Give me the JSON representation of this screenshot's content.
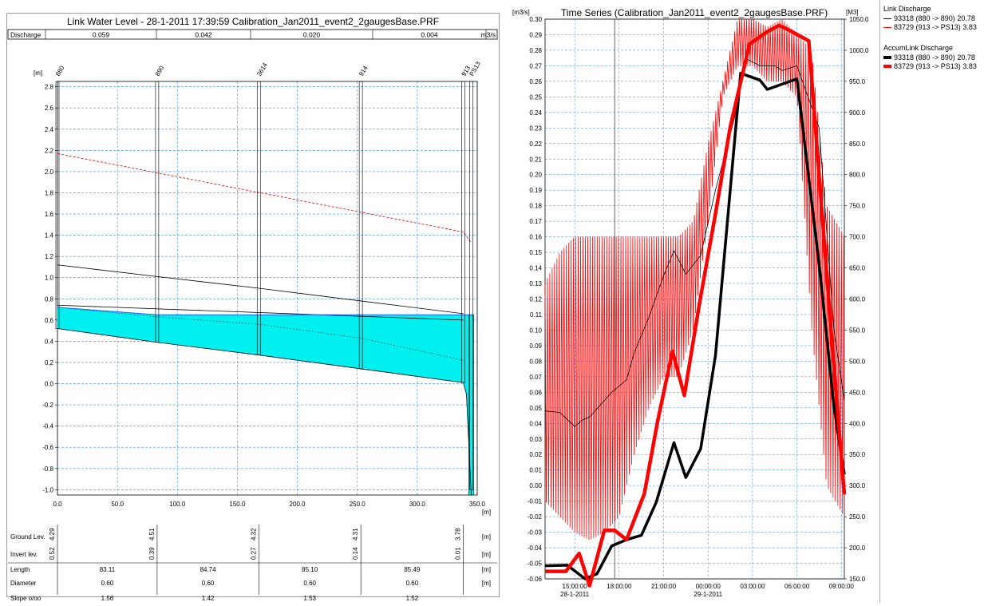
{
  "profile": {
    "title": "Link Water Level - 28-1-2011 17:39:59 Calibration_Jan2011_event2_2gaugesBase.PRF",
    "discharge_label": "Discharge",
    "discharge_values": [
      "0.059",
      "0.042",
      "0.020",
      "0.004"
    ],
    "discharge_unit": "m3/s",
    "table_unit": "[m]",
    "rows": {
      "ground_label": "Ground Lev.",
      "invert_label": "Invert lev.",
      "length_label": "Length",
      "diameter_label": "Diameter",
      "slope_label": "Slope o/oo"
    },
    "lengths": [
      "83.11",
      "84.74",
      "85.10",
      "85.49"
    ],
    "diameters": [
      "0.60",
      "0.60",
      "0.60",
      "0.60"
    ],
    "slopes": [
      "1.56",
      "1.42",
      "1.53",
      "1.52"
    ]
  },
  "timeseries": {
    "title": "Time Series (Calibration_Jan2011_event2_2gaugesBase.PRF)"
  },
  "legend": {
    "group1_title": "Link Discharge",
    "group1_items": [
      {
        "label": "93318 (880 -> 890)",
        "value": "20.78",
        "color": "#000000"
      },
      {
        "label": "83729 (913 -> PS13)",
        "value": "3.83",
        "color": "#ff0000"
      }
    ],
    "group2_title": "AccumLink Discharge",
    "group2_items": [
      {
        "label": "93318 (880 -> 890)",
        "value": "20.78",
        "color": "#000000"
      },
      {
        "label": "83729 (913 -> PS13)",
        "value": "3.83",
        "color": "#ff0000"
      }
    ]
  },
  "chart_data": [
    {
      "type": "line",
      "title": "Link Water Level - 28-1-2011 17:39:59 Calibration_Jan2011_event2_2gaugesBase.PRF",
      "ylabel": "[m]",
      "xlabel": "[m]",
      "xlim": [
        0,
        350
      ],
      "ylim": [
        -1.05,
        2.85
      ],
      "x_ticks": [
        "0.0",
        "50.0",
        "100.0",
        "150.0",
        "200.0",
        "250.0",
        "300.0",
        "350.0"
      ],
      "y_ticks": [
        "2.8",
        "2.6",
        "2.4",
        "2.2",
        "2.0",
        "1.8",
        "1.6",
        "1.4",
        "1.2",
        "1.0",
        "0.8",
        "0.6",
        "0.4",
        "0.2",
        "0.0",
        "-0.2",
        "-0.4",
        "-0.6",
        "-0.8",
        "-1.0"
      ],
      "nodes": [
        {
          "name": "880",
          "x": 0,
          "ground": "4.29",
          "invert": "0.52"
        },
        {
          "name": "890",
          "x": 83.11,
          "ground": "4.51",
          "invert": "0.39"
        },
        {
          "name": "3614",
          "x": 167.85,
          "ground": "4.32",
          "invert": "0.27"
        },
        {
          "name": "914",
          "x": 252.95,
          "ground": "4.31",
          "invert": "0.14"
        },
        {
          "name": "913",
          "x": 338.44,
          "ground": "3.78",
          "invert": "0.01"
        },
        {
          "name": "PS13",
          "x": 345,
          "ground": "",
          "invert": ""
        }
      ],
      "invert_line": {
        "x": [
          0,
          83.11,
          167.85,
          252.95,
          338.44,
          341,
          345
        ],
        "y": [
          0.52,
          0.39,
          0.27,
          0.14,
          0.01,
          -0.1,
          -1.05
        ]
      },
      "crown_line": {
        "x": [
          0,
          83.11,
          167.85,
          252.95,
          338.44
        ],
        "y": [
          0.72,
          0.63,
          0.56,
          0.43,
          0.22
        ]
      },
      "water_level": {
        "x": [
          0,
          83.11,
          167.85,
          252.95,
          338.44,
          345
        ],
        "y": [
          0.72,
          0.65,
          0.65,
          0.65,
          0.65,
          0.65
        ]
      },
      "pipe_top": {
        "x": [
          0,
          338.44
        ],
        "y": [
          0.74,
          0.6
        ]
      },
      "ground_line": {
        "x": [
          0,
          83.11,
          167.85,
          252.95,
          338.44
        ],
        "y": [
          1.12,
          1.01,
          0.9,
          0.78,
          0.66
        ]
      },
      "energy_line": {
        "x": [
          0,
          338.44,
          345
        ],
        "y": [
          2.17,
          1.43,
          1.33
        ]
      },
      "pump_well": {
        "x0": 343,
        "x1": 347,
        "bottom": -1.05
      }
    },
    {
      "type": "line",
      "title": "Time Series (Calibration_Jan2011_event2_2gaugesBase.PRF)",
      "ylabel": "[m3/s]",
      "y2label": "[M3]",
      "ylim": [
        -0.06,
        0.3
      ],
      "y2lim": [
        150,
        1050
      ],
      "y_ticks": [
        "0.30",
        "0.29",
        "0.28",
        "0.27",
        "0.26",
        "0.25",
        "0.24",
        "0.23",
        "0.22",
        "0.21",
        "0.20",
        "0.19",
        "0.18",
        "0.17",
        "0.16",
        "0.15",
        "0.14",
        "0.13",
        "0.12",
        "0.11",
        "0.10",
        "0.09",
        "0.08",
        "0.07",
        "0.06",
        "0.05",
        "0.04",
        "0.03",
        "0.02",
        "0.01",
        "0.00",
        "-0.01",
        "-0.02",
        "-0.03",
        "-0.04",
        "-0.05",
        "-0.06"
      ],
      "y2_ticks": [
        "1050.0",
        "1000.0",
        "950.0",
        "900.0",
        "850.0",
        "800.0",
        "750.0",
        "700.0",
        "650.0",
        "600.0",
        "550.0",
        "500.0",
        "450.0",
        "400.0",
        "350.0",
        "300.0",
        "250.0",
        "200.0",
        "150.0"
      ],
      "x_ticks": [
        "15:00:00",
        "18:00:00",
        "21:00:00",
        "00:00:00",
        "03:00:00",
        "06:00:00",
        "09:00:00"
      ],
      "x_dates": [
        "28-1-2011",
        "29-1-2011"
      ],
      "xlim_hours": [
        13,
        33.2
      ],
      "cursor_hour": 17.7,
      "series": [
        {
          "name": "93318 (880 -> 890)",
          "axis": "right",
          "width": 3.5,
          "color": "#000000",
          "x": [
            13,
            14.5,
            15.7,
            16.5,
            17.5,
            18.5,
            19.5,
            20.5,
            21.7,
            22.5,
            23.5,
            24.5,
            26.2,
            27.5,
            28.0,
            30.0,
            31.5,
            32.5,
            33.2
          ],
          "y": [
            171,
            172,
            150,
            158,
            203,
            213,
            220,
            273,
            369,
            313,
            359,
            509,
            963,
            952,
            937,
            954,
            655,
            427,
            318
          ]
        },
        {
          "name": "83729 (913 -> PS13)",
          "axis": "right",
          "width": 4.5,
          "color": "#ff0000",
          "x": [
            13,
            14.4,
            15.3,
            16,
            17,
            17.7,
            18.5,
            19.7,
            20.6,
            21.6,
            22.4,
            23.4,
            24.5,
            25.5,
            26.8,
            28.0,
            28.8,
            29.5,
            30.8,
            32.4,
            33.2
          ],
          "y": [
            162,
            162,
            191,
            139,
            228,
            228,
            213,
            287,
            404,
            516,
            445,
            590,
            737,
            877,
            1010,
            1030,
            1040,
            1032,
            1015,
            520,
            286
          ]
        },
        {
          "name": "93318 (880 -> 890)",
          "axis": "left",
          "width": 0.8,
          "color": "#000000",
          "x": [
            13,
            14,
            15,
            15.5,
            16,
            17.5,
            18.5,
            19.0,
            20.0,
            21.0,
            21.7,
            22.5,
            23.5,
            24.5,
            25.8,
            26.5,
            27.5,
            28.5,
            29.0,
            30.0,
            31.5,
            32.5,
            33.2
          ],
          "y": [
            0.048,
            0.047,
            0.038,
            0.042,
            0.044,
            0.06,
            0.068,
            0.085,
            0.108,
            0.135,
            0.151,
            0.136,
            0.148,
            0.19,
            0.237,
            0.275,
            0.27,
            0.27,
            0.267,
            0.27,
            0.23,
            0.1,
            0.055
          ]
        },
        {
          "name": "83729 (913 -> PS13)",
          "axis": "left",
          "width": 0.8,
          "color": "#ff0000",
          "oscillating": true,
          "x": [
            13,
            14,
            15,
            16,
            17,
            18,
            19,
            20,
            21,
            22,
            23,
            24,
            25,
            26,
            27,
            28,
            29,
            30,
            31,
            32,
            33.2
          ],
          "y": [
            0.04,
            0.045,
            0.04,
            0.045,
            0.05,
            0.06,
            0.065,
            0.08,
            0.1,
            0.12,
            0.14,
            0.2,
            0.25,
            0.285,
            0.285,
            0.28,
            0.283,
            0.27,
            0.22,
            0.12,
            0.07
          ],
          "low": [
            -0.01,
            -0.02,
            -0.03,
            -0.035,
            -0.03,
            -0.02,
            0.02,
            0.05,
            0.07,
            0.07,
            0.1,
            0.17,
            0.25,
            0.27,
            0.27,
            0.26,
            0.26,
            0.25,
            0.1,
            0.0,
            -0.02
          ],
          "high": [
            0.13,
            0.15,
            0.16,
            0.16,
            0.16,
            0.16,
            0.16,
            0.16,
            0.16,
            0.16,
            0.17,
            0.22,
            0.26,
            0.3,
            0.3,
            0.295,
            0.3,
            0.29,
            0.28,
            0.18,
            0.16
          ]
        }
      ]
    }
  ]
}
